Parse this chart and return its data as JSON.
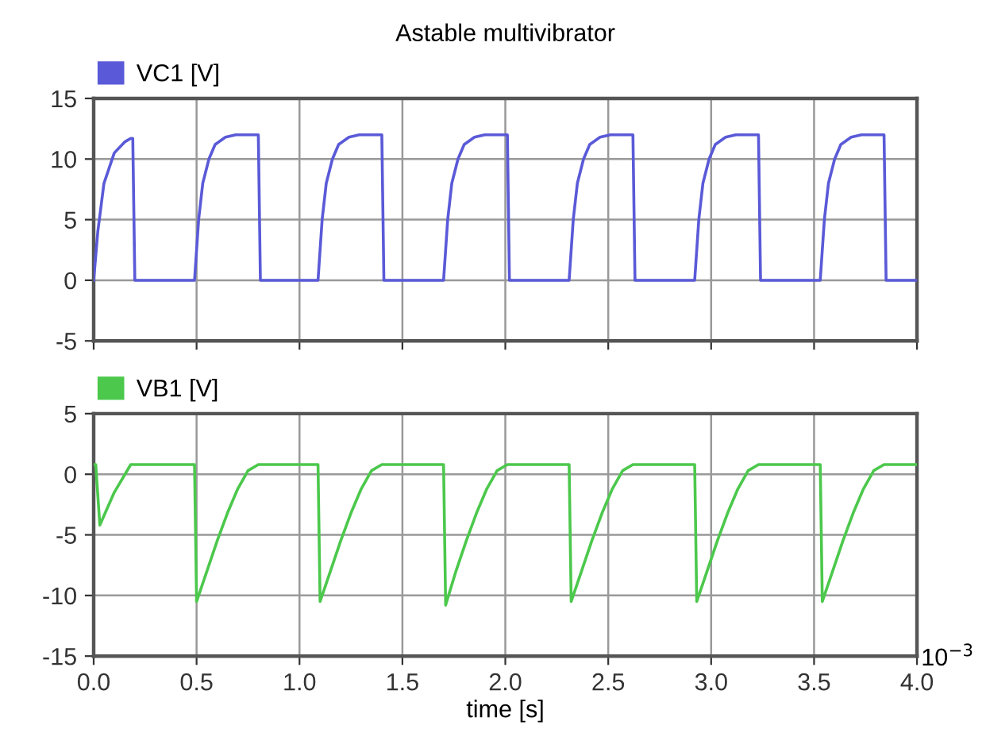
{
  "chart_data": [
    {
      "type": "line",
      "title": "Astable multivibrator",
      "xlim": [
        0,
        4
      ],
      "xticks": [
        0,
        0.5,
        1,
        1.5,
        2,
        2.5,
        3,
        3.5,
        4
      ],
      "ylim": [
        -5,
        15
      ],
      "yticks": [
        -5,
        0,
        5,
        10,
        15
      ],
      "grid": true,
      "legend": "top left",
      "tick_labels": "y",
      "series": [
        {
          "name": "VC1 [V]",
          "color": "#5a5ad8",
          "x": [
            0,
            0.02,
            0.05,
            0.1,
            0.15,
            0.18,
            0.19,
            0.2,
            0.49,
            0.51,
            0.53,
            0.56,
            0.59,
            0.64,
            0.69,
            0.8,
            0.81,
            1.09,
            1.11,
            1.13,
            1.16,
            1.19,
            1.24,
            1.29,
            1.4,
            1.41,
            1.7,
            1.72,
            1.74,
            1.77,
            1.8,
            1.85,
            1.9,
            2.01,
            2.02,
            2.31,
            2.33,
            2.35,
            2.38,
            2.41,
            2.46,
            2.51,
            2.62,
            2.63,
            2.92,
            2.94,
            2.96,
            2.99,
            3.02,
            3.07,
            3.12,
            3.23,
            3.24,
            3.53,
            3.55,
            3.57,
            3.6,
            3.63,
            3.68,
            3.73,
            3.84,
            3.85,
            4.0
          ],
          "values": [
            0,
            4,
            8,
            10.5,
            11.4,
            11.7,
            11.7,
            0,
            0,
            5,
            8,
            10,
            11.2,
            11.8,
            12,
            12,
            0,
            0,
            5,
            8,
            10,
            11.2,
            11.8,
            12,
            12,
            0,
            0,
            5,
            8,
            10,
            11.2,
            11.8,
            12,
            12,
            0,
            0,
            5,
            8,
            10,
            11.2,
            11.8,
            12,
            12,
            0,
            0,
            5,
            8,
            10,
            11.2,
            11.8,
            12,
            12,
            0,
            0,
            5,
            8,
            10,
            11.2,
            11.8,
            12,
            12,
            0,
            0
          ]
        }
      ]
    },
    {
      "type": "line",
      "xlabel": "time [s]",
      "xlim": [
        0,
        4
      ],
      "xticks": [
        {
          "value": 0,
          "label": "0.0"
        },
        0.5,
        {
          "value": 1,
          "label": "1.0"
        },
        1.5,
        {
          "value": 2,
          "label": "2.0"
        },
        2.5,
        {
          "value": 3,
          "label": "3.0"
        },
        3.5,
        {
          "value": 4,
          "label": "4.0"
        }
      ],
      "ylim": [
        -15,
        5
      ],
      "yticks": [
        -15,
        -10,
        -5,
        0,
        5
      ],
      "grid": true,
      "legend": "top left",
      "annotations": [
        "10$^{−3}$"
      ],
      "series": [
        {
          "name": "VB1 [V]",
          "color": "#4cc84c",
          "x": [
            0,
            0.01,
            0.03,
            0.1,
            0.18,
            0.49,
            0.5,
            0.55,
            0.6,
            0.65,
            0.7,
            0.75,
            0.8,
            1.09,
            1.1,
            1.15,
            1.2,
            1.25,
            1.3,
            1.35,
            1.4,
            1.7,
            1.71,
            1.76,
            1.81,
            1.86,
            1.91,
            1.96,
            2.01,
            2.31,
            2.32,
            2.37,
            2.42,
            2.47,
            2.52,
            2.57,
            2.62,
            2.92,
            2.93,
            2.98,
            3.03,
            3.08,
            3.13,
            3.18,
            3.23,
            3.53,
            3.54,
            3.59,
            3.64,
            3.69,
            3.74,
            3.79,
            3.84,
            4.0
          ],
          "values": [
            0.8,
            0.8,
            -4.2,
            -1.5,
            0.8,
            0.8,
            -10.5,
            -8,
            -5.5,
            -3.2,
            -1.2,
            0.3,
            0.8,
            0.8,
            -10.5,
            -8,
            -5.5,
            -3.2,
            -1.2,
            0.3,
            0.8,
            0.8,
            -10.8,
            -8,
            -5.5,
            -3.2,
            -1.2,
            0.3,
            0.8,
            0.8,
            -10.5,
            -8,
            -5.5,
            -3.2,
            -1.2,
            0.3,
            0.8,
            0.8,
            -10.5,
            -8,
            -5.5,
            -3.2,
            -1.2,
            0.3,
            0.8,
            0.8,
            -10.5,
            -8,
            -5.5,
            -3.2,
            -1.2,
            0.3,
            0.8,
            0.8
          ]
        }
      ]
    }
  ]
}
